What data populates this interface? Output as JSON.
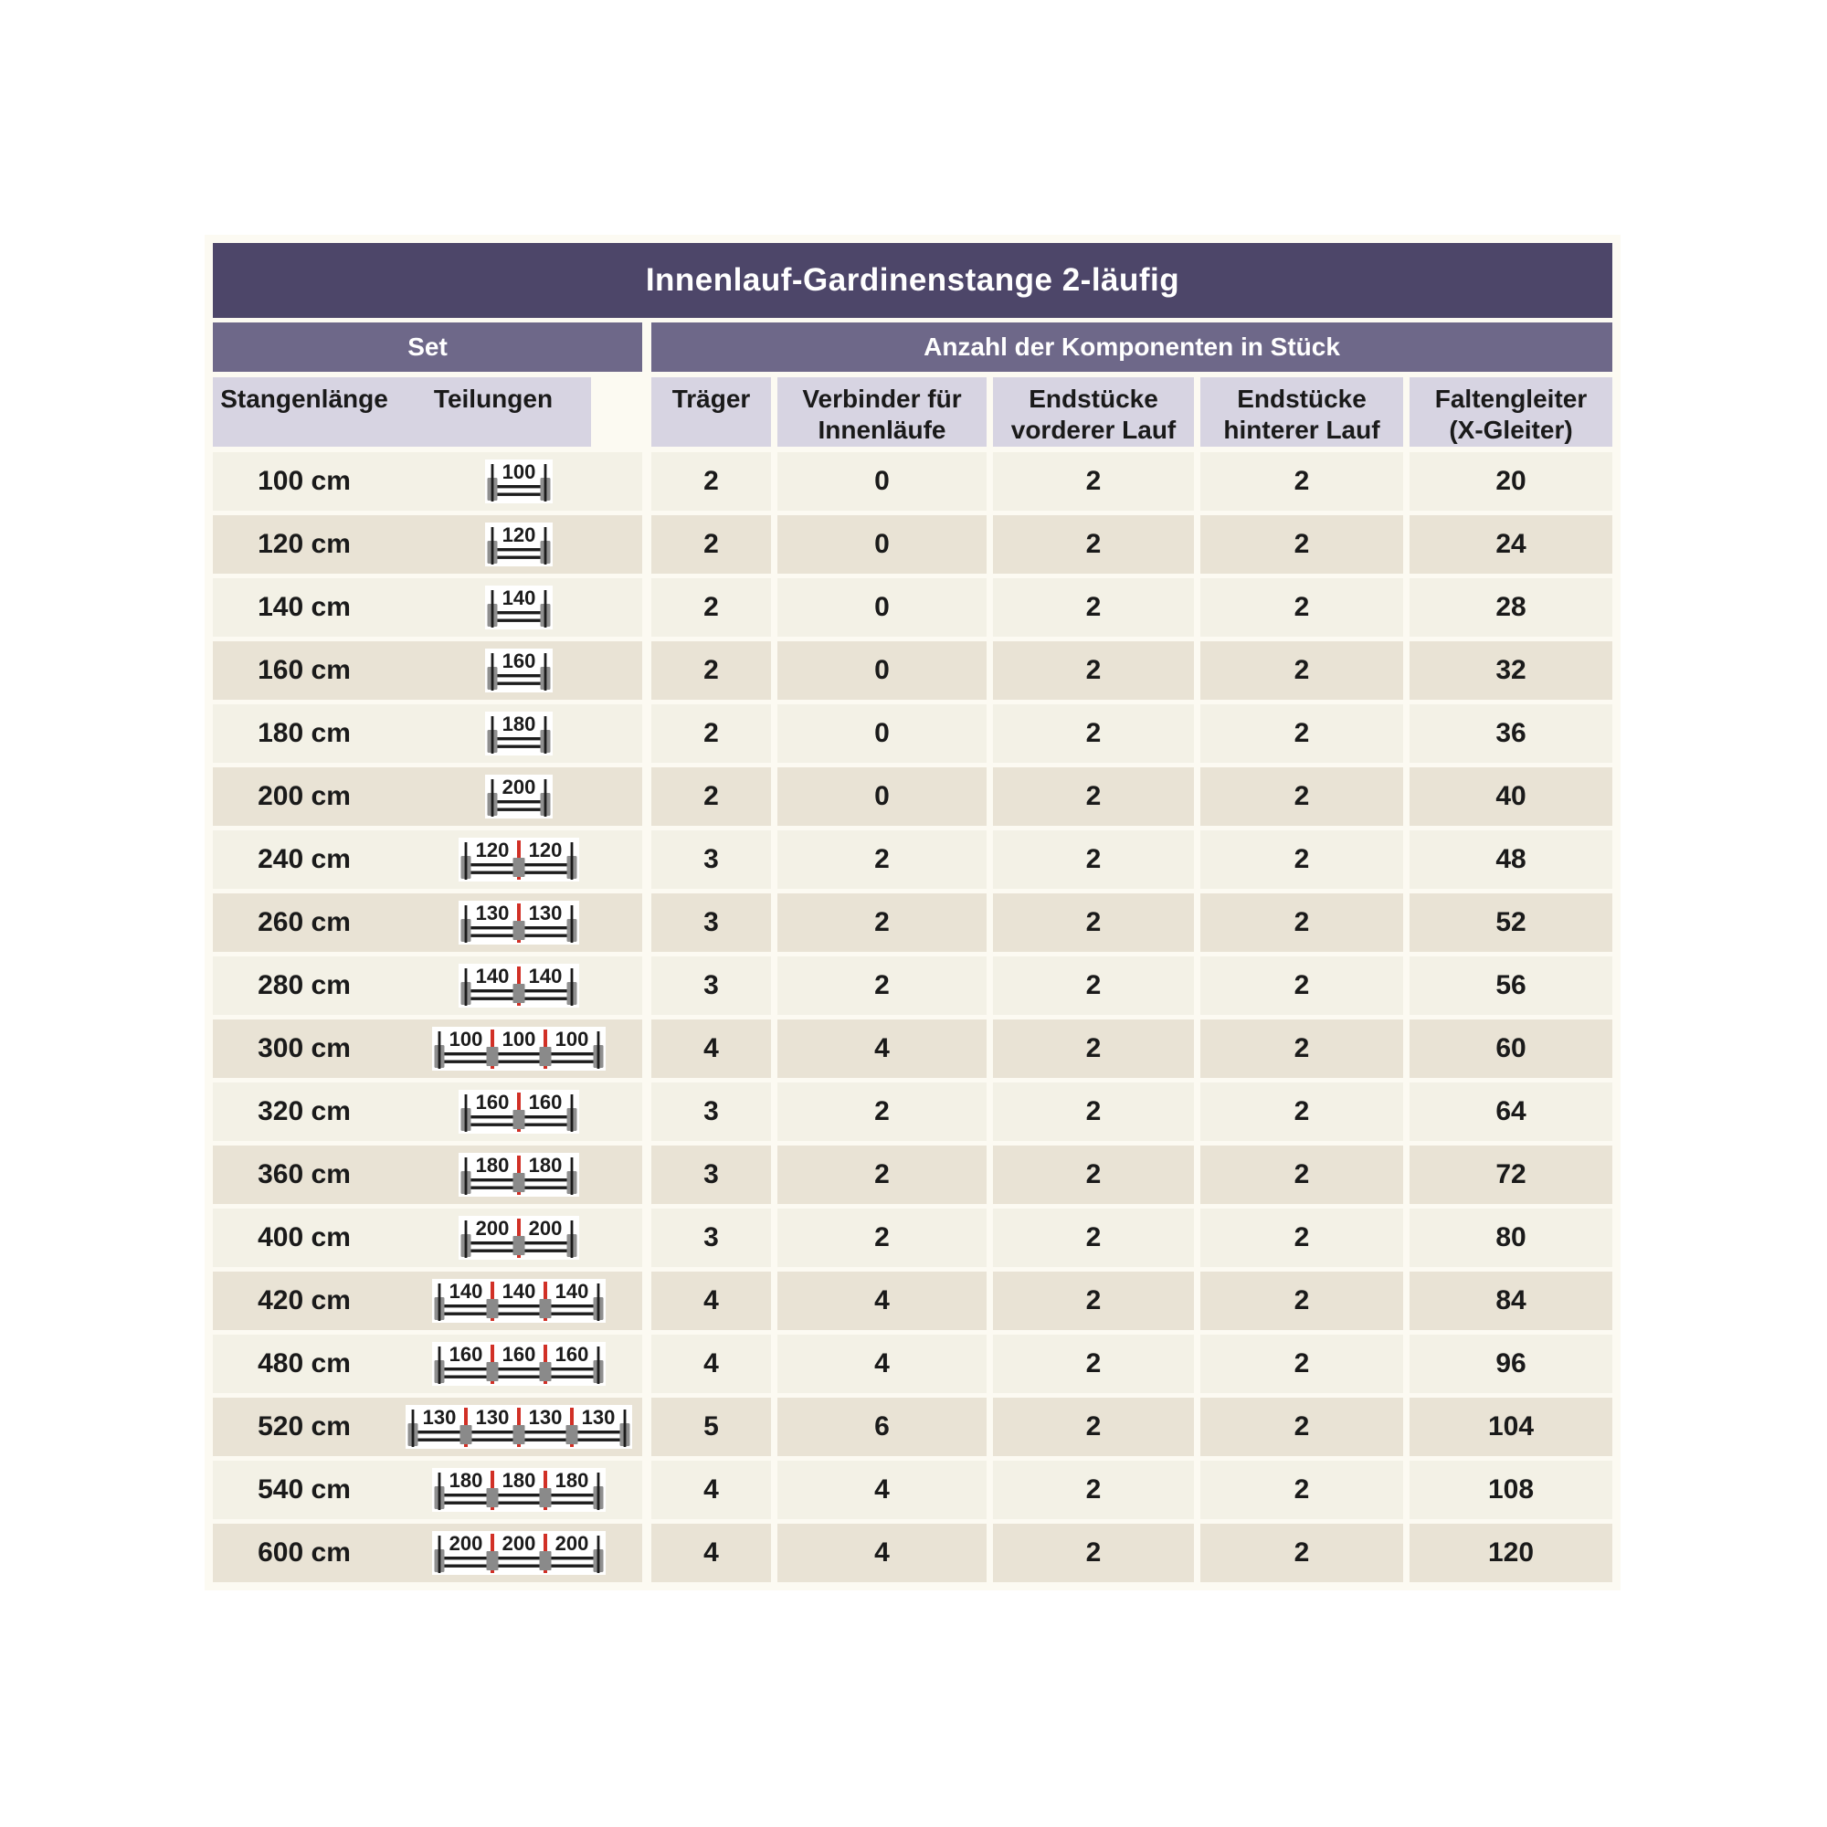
{
  "title": "Innenlauf-Gardinenstange 2-läufig",
  "sections": {
    "set": "Set",
    "components": "Anzahl der Komponenten in Stück"
  },
  "columns": {
    "stangenlaenge": "Stangenlänge",
    "teilungen": "Teilungen",
    "traeger": "Träger",
    "verbinder": "Verbinder für\nInnenläufe",
    "endstuecke_vorderer": "Endstücke\nvorderer Lauf",
    "endstuecke_hinterer": "Endstücke\nhinterer Lauf",
    "faltengleiter": "Faltengleiter\n(X-Gleiter)"
  },
  "rows": [
    {
      "length": "100 cm",
      "segments": [
        100
      ],
      "traeger": 2,
      "verbinder": 0,
      "endstuecke_vorderer": 2,
      "endstuecke_hinterer": 2,
      "faltengleiter": 20
    },
    {
      "length": "120 cm",
      "segments": [
        120
      ],
      "traeger": 2,
      "verbinder": 0,
      "endstuecke_vorderer": 2,
      "endstuecke_hinterer": 2,
      "faltengleiter": 24
    },
    {
      "length": "140 cm",
      "segments": [
        140
      ],
      "traeger": 2,
      "verbinder": 0,
      "endstuecke_vorderer": 2,
      "endstuecke_hinterer": 2,
      "faltengleiter": 28
    },
    {
      "length": "160 cm",
      "segments": [
        160
      ],
      "traeger": 2,
      "verbinder": 0,
      "endstuecke_vorderer": 2,
      "endstuecke_hinterer": 2,
      "faltengleiter": 32
    },
    {
      "length": "180 cm",
      "segments": [
        180
      ],
      "traeger": 2,
      "verbinder": 0,
      "endstuecke_vorderer": 2,
      "endstuecke_hinterer": 2,
      "faltengleiter": 36
    },
    {
      "length": "200 cm",
      "segments": [
        200
      ],
      "traeger": 2,
      "verbinder": 0,
      "endstuecke_vorderer": 2,
      "endstuecke_hinterer": 2,
      "faltengleiter": 40
    },
    {
      "length": "240 cm",
      "segments": [
        120,
        120
      ],
      "traeger": 3,
      "verbinder": 2,
      "endstuecke_vorderer": 2,
      "endstuecke_hinterer": 2,
      "faltengleiter": 48
    },
    {
      "length": "260 cm",
      "segments": [
        130,
        130
      ],
      "traeger": 3,
      "verbinder": 2,
      "endstuecke_vorderer": 2,
      "endstuecke_hinterer": 2,
      "faltengleiter": 52
    },
    {
      "length": "280 cm",
      "segments": [
        140,
        140
      ],
      "traeger": 3,
      "verbinder": 2,
      "endstuecke_vorderer": 2,
      "endstuecke_hinterer": 2,
      "faltengleiter": 56
    },
    {
      "length": "300 cm",
      "segments": [
        100,
        100,
        100
      ],
      "traeger": 4,
      "verbinder": 4,
      "endstuecke_vorderer": 2,
      "endstuecke_hinterer": 2,
      "faltengleiter": 60
    },
    {
      "length": "320 cm",
      "segments": [
        160,
        160
      ],
      "traeger": 3,
      "verbinder": 2,
      "endstuecke_vorderer": 2,
      "endstuecke_hinterer": 2,
      "faltengleiter": 64
    },
    {
      "length": "360 cm",
      "segments": [
        180,
        180
      ],
      "traeger": 3,
      "verbinder": 2,
      "endstuecke_vorderer": 2,
      "endstuecke_hinterer": 2,
      "faltengleiter": 72
    },
    {
      "length": "400 cm",
      "segments": [
        200,
        200
      ],
      "traeger": 3,
      "verbinder": 2,
      "endstuecke_vorderer": 2,
      "endstuecke_hinterer": 2,
      "faltengleiter": 80
    },
    {
      "length": "420 cm",
      "segments": [
        140,
        140,
        140
      ],
      "traeger": 4,
      "verbinder": 4,
      "endstuecke_vorderer": 2,
      "endstuecke_hinterer": 2,
      "faltengleiter": 84
    },
    {
      "length": "480 cm",
      "segments": [
        160,
        160,
        160
      ],
      "traeger": 4,
      "verbinder": 4,
      "endstuecke_vorderer": 2,
      "endstuecke_hinterer": 2,
      "faltengleiter": 96
    },
    {
      "length": "520 cm",
      "segments": [
        130,
        130,
        130,
        130
      ],
      "traeger": 5,
      "verbinder": 6,
      "endstuecke_vorderer": 2,
      "endstuecke_hinterer": 2,
      "faltengleiter": 104
    },
    {
      "length": "540 cm",
      "segments": [
        180,
        180,
        180
      ],
      "traeger": 4,
      "verbinder": 4,
      "endstuecke_vorderer": 2,
      "endstuecke_hinterer": 2,
      "faltengleiter": 108
    },
    {
      "length": "600 cm",
      "segments": [
        200,
        200,
        200
      ],
      "traeger": 4,
      "verbinder": 4,
      "endstuecke_vorderer": 2,
      "endstuecke_hinterer": 2,
      "faltengleiter": 120
    }
  ],
  "colors": {
    "title_bar": "#4d4669",
    "subheader_bar": "#6e6889",
    "column_header_bg": "#d7d4e2",
    "row_light": "#f3f1e6",
    "row_dark": "#e9e3d5",
    "frame_bg": "#fcfaf2",
    "icon_bg": "#ffffff",
    "rod_black": "#1c1c1c",
    "divider_red": "#d13026",
    "cap_gray": "#8f8f8f",
    "bracket_gray": "#8a8a8a"
  }
}
